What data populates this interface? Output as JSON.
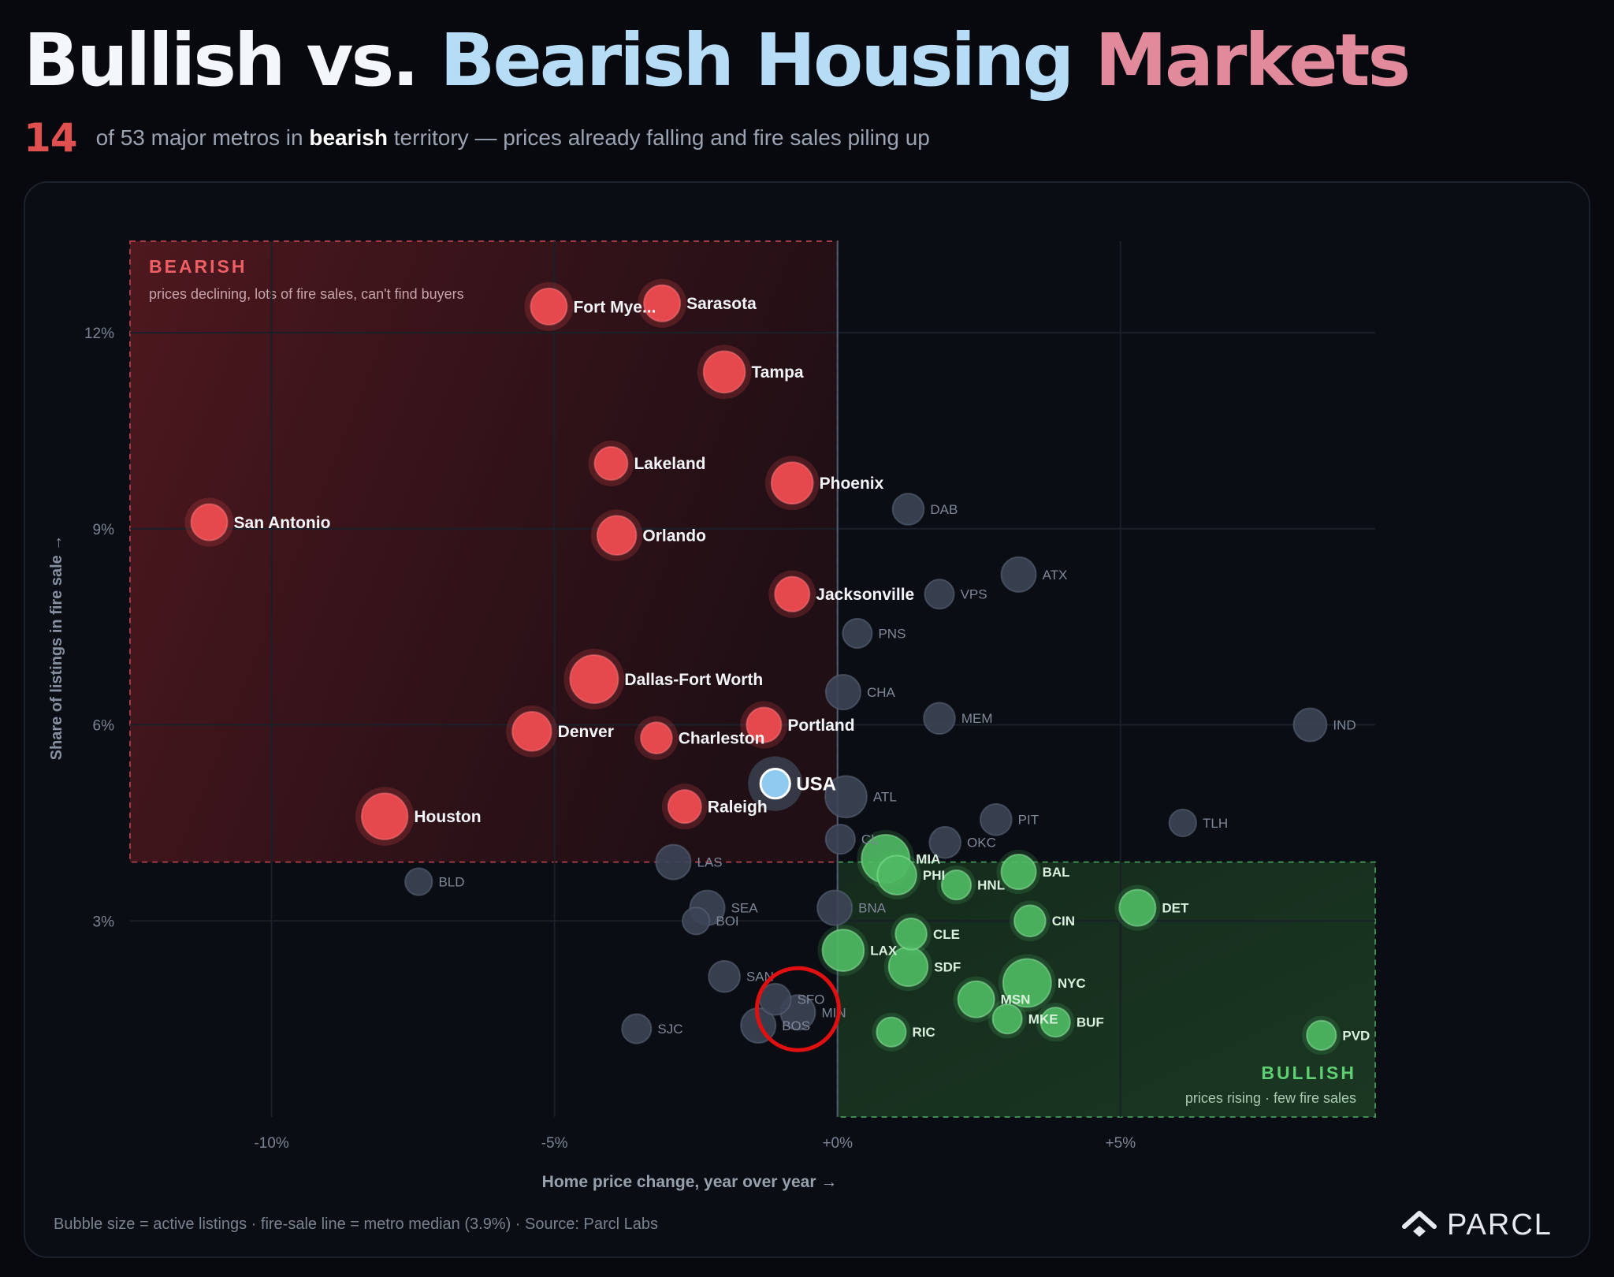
{
  "title": {
    "part1": "Bullish vs.",
    "part2": "Bearish Housing",
    "part3": "Markets"
  },
  "subtitle": {
    "count": "14",
    "text_before": "of 53 major metros in",
    "bold_word": "bearish",
    "text_after": "territory — prices already falling and fire sales piling up"
  },
  "footer": {
    "note": "Bubble size = active listings · fire-sale line = metro median (3.9%) · Source: Parcl Labs",
    "brand": "PARCL"
  },
  "colors": {
    "bearish": "#e5484d",
    "bullish": "#4fba63",
    "neutral": "#3c4556",
    "usa": "#8fcaf0",
    "highlight_ring": "#e01010"
  },
  "chart_data": {
    "type": "scatter",
    "xlabel": "Home price change, year over year →",
    "ylabel": "Share of listings in fire sale →",
    "xlim": [
      -12.5,
      9.5
    ],
    "ylim": [
      0,
      13.4
    ],
    "x_ticks": [
      -10,
      -5,
      0,
      5
    ],
    "x_tick_labels": [
      "-10%",
      "-5%",
      "+0%",
      "+5%"
    ],
    "y_ticks": [
      3,
      6,
      9,
      12
    ],
    "y_tick_labels": [
      "3%",
      "6%",
      "9%",
      "12%"
    ],
    "grid": true,
    "fire_sale_line": 3.9,
    "zero_line": 0,
    "zones": {
      "bearish": {
        "title": "BEARISH",
        "caption": "prices declining, lots of fire sales, can't find buyers",
        "x": [
          -12.5,
          0
        ],
        "y": [
          3.9,
          13.4
        ]
      },
      "bullish": {
        "title": "BULLISH",
        "caption": "prices rising · few fire sales",
        "x": [
          0,
          9.5
        ],
        "y": [
          0,
          3.9
        ]
      }
    },
    "highlight": {
      "x": -0.7,
      "y": 1.65
    },
    "points": [
      {
        "label": "San Antonio",
        "group": "bearish",
        "x": -11.1,
        "y": 9.1,
        "size": 4
      },
      {
        "label": "Houston",
        "group": "bearish",
        "x": -8.0,
        "y": 4.6,
        "size": 8
      },
      {
        "label": "Denver",
        "group": "bearish",
        "x": -5.4,
        "y": 5.9,
        "size": 5
      },
      {
        "label": "Dallas-Fort Worth",
        "group": "bearish",
        "x": -4.3,
        "y": 6.7,
        "size": 9
      },
      {
        "label": "Fort Mye...",
        "group": "bearish",
        "x": -5.1,
        "y": 12.4,
        "size": 4
      },
      {
        "label": "Sarasota",
        "group": "bearish",
        "x": -3.1,
        "y": 12.45,
        "size": 4
      },
      {
        "label": "Tampa",
        "group": "bearish",
        "x": -2.0,
        "y": 11.4,
        "size": 6
      },
      {
        "label": "Lakeland",
        "group": "bearish",
        "x": -4.0,
        "y": 10.0,
        "size": 3
      },
      {
        "label": "Phoenix",
        "group": "bearish",
        "x": -0.8,
        "y": 9.7,
        "size": 6
      },
      {
        "label": "Orlando",
        "group": "bearish",
        "x": -3.9,
        "y": 8.9,
        "size": 5
      },
      {
        "label": "Jacksonville",
        "group": "bearish",
        "x": -0.8,
        "y": 8.0,
        "size": 3.5
      },
      {
        "label": "Portland",
        "group": "bearish",
        "x": -1.3,
        "y": 6.0,
        "size": 3.5
      },
      {
        "label": "Charleston",
        "group": "bearish",
        "x": -3.2,
        "y": 5.8,
        "size": 2.5
      },
      {
        "label": "Raleigh",
        "group": "bearish",
        "x": -2.7,
        "y": 4.75,
        "size": 3
      },
      {
        "label": "USA",
        "group": "usa",
        "x": -1.1,
        "y": 5.1,
        "size": 2
      },
      {
        "label": "DAB",
        "group": "neutral",
        "x": 1.25,
        "y": 9.3,
        "size": 2.5
      },
      {
        "label": "ATX",
        "group": "neutral",
        "x": 3.2,
        "y": 8.3,
        "size": 3.5
      },
      {
        "label": "VPS",
        "group": "neutral",
        "x": 1.8,
        "y": 8.0,
        "size": 2
      },
      {
        "label": "PNS",
        "group": "neutral",
        "x": 0.35,
        "y": 7.4,
        "size": 2
      },
      {
        "label": "CHA",
        "group": "neutral",
        "x": 0.1,
        "y": 6.5,
        "size": 3.5
      },
      {
        "label": "MEM",
        "group": "neutral",
        "x": 1.8,
        "y": 6.1,
        "size": 2.5
      },
      {
        "label": "IND",
        "group": "neutral",
        "x": 8.35,
        "y": 6.0,
        "size": 3
      },
      {
        "label": "ATL",
        "group": "neutral",
        "x": 0.15,
        "y": 4.9,
        "size": 6
      },
      {
        "label": "PIT",
        "group": "neutral",
        "x": 2.8,
        "y": 4.55,
        "size": 2.5
      },
      {
        "label": "TLH",
        "group": "neutral",
        "x": 6.1,
        "y": 4.5,
        "size": 1.5
      },
      {
        "label": "OKC",
        "group": "neutral",
        "x": 1.9,
        "y": 4.2,
        "size": 2.5
      },
      {
        "label": "CL",
        "group": "neutral",
        "x": 0.05,
        "y": 4.25,
        "size": 2
      },
      {
        "label": "LAS",
        "group": "neutral",
        "x": -2.9,
        "y": 3.9,
        "size": 3.5
      },
      {
        "label": "BLD",
        "group": "neutral",
        "x": -7.4,
        "y": 3.6,
        "size": 1.5
      },
      {
        "label": "SEA",
        "group": "neutral",
        "x": -2.3,
        "y": 3.2,
        "size": 3.5
      },
      {
        "label": "BOI",
        "group": "neutral",
        "x": -2.5,
        "y": 3.0,
        "size": 1.5
      },
      {
        "label": "BNA",
        "group": "neutral",
        "x": -0.05,
        "y": 3.2,
        "size": 3.5
      },
      {
        "label": "SAN",
        "group": "neutral",
        "x": -2.0,
        "y": 2.15,
        "size": 2.5
      },
      {
        "label": "SFO",
        "group": "neutral",
        "x": -1.1,
        "y": 1.8,
        "size": 2.5
      },
      {
        "label": "MIN",
        "group": "neutral",
        "x": -0.7,
        "y": 1.6,
        "size": 3.5
      },
      {
        "label": "BOS",
        "group": "neutral",
        "x": -1.4,
        "y": 1.4,
        "size": 3.5
      },
      {
        "label": "SJC",
        "group": "neutral",
        "x": -3.55,
        "y": 1.35,
        "size": 2
      },
      {
        "label": "MIA",
        "group": "bullish",
        "x": 0.85,
        "y": 3.95,
        "size": 9
      },
      {
        "label": "PHI",
        "group": "bullish",
        "x": 1.05,
        "y": 3.7,
        "size": 5
      },
      {
        "label": "HNL",
        "group": "bullish",
        "x": 2.1,
        "y": 3.55,
        "size": 2
      },
      {
        "label": "BAL",
        "group": "bullish",
        "x": 3.2,
        "y": 3.75,
        "size": 3.5
      },
      {
        "label": "DET",
        "group": "bullish",
        "x": 5.3,
        "y": 3.2,
        "size": 4
      },
      {
        "label": "CIN",
        "group": "bullish",
        "x": 3.4,
        "y": 3.0,
        "size": 2.5
      },
      {
        "label": "CLE",
        "group": "bullish",
        "x": 1.3,
        "y": 2.8,
        "size": 2.5
      },
      {
        "label": "LAX",
        "group": "bullish",
        "x": 0.1,
        "y": 2.55,
        "size": 6
      },
      {
        "label": "SDF",
        "group": "bullish",
        "x": 1.25,
        "y": 2.3,
        "size": 5
      },
      {
        "label": "NYC",
        "group": "bullish",
        "x": 3.35,
        "y": 2.05,
        "size": 9
      },
      {
        "label": "MSN",
        "group": "bullish",
        "x": 2.45,
        "y": 1.8,
        "size": 4
      },
      {
        "label": "MKE",
        "group": "bullish",
        "x": 3.0,
        "y": 1.5,
        "size": 2
      },
      {
        "label": "BUF",
        "group": "bullish",
        "x": 3.85,
        "y": 1.45,
        "size": 2
      },
      {
        "label": "RIC",
        "group": "bullish",
        "x": 0.95,
        "y": 1.3,
        "size": 2
      },
      {
        "label": "PVD",
        "group": "bullish",
        "x": 8.55,
        "y": 1.25,
        "size": 2
      }
    ]
  }
}
